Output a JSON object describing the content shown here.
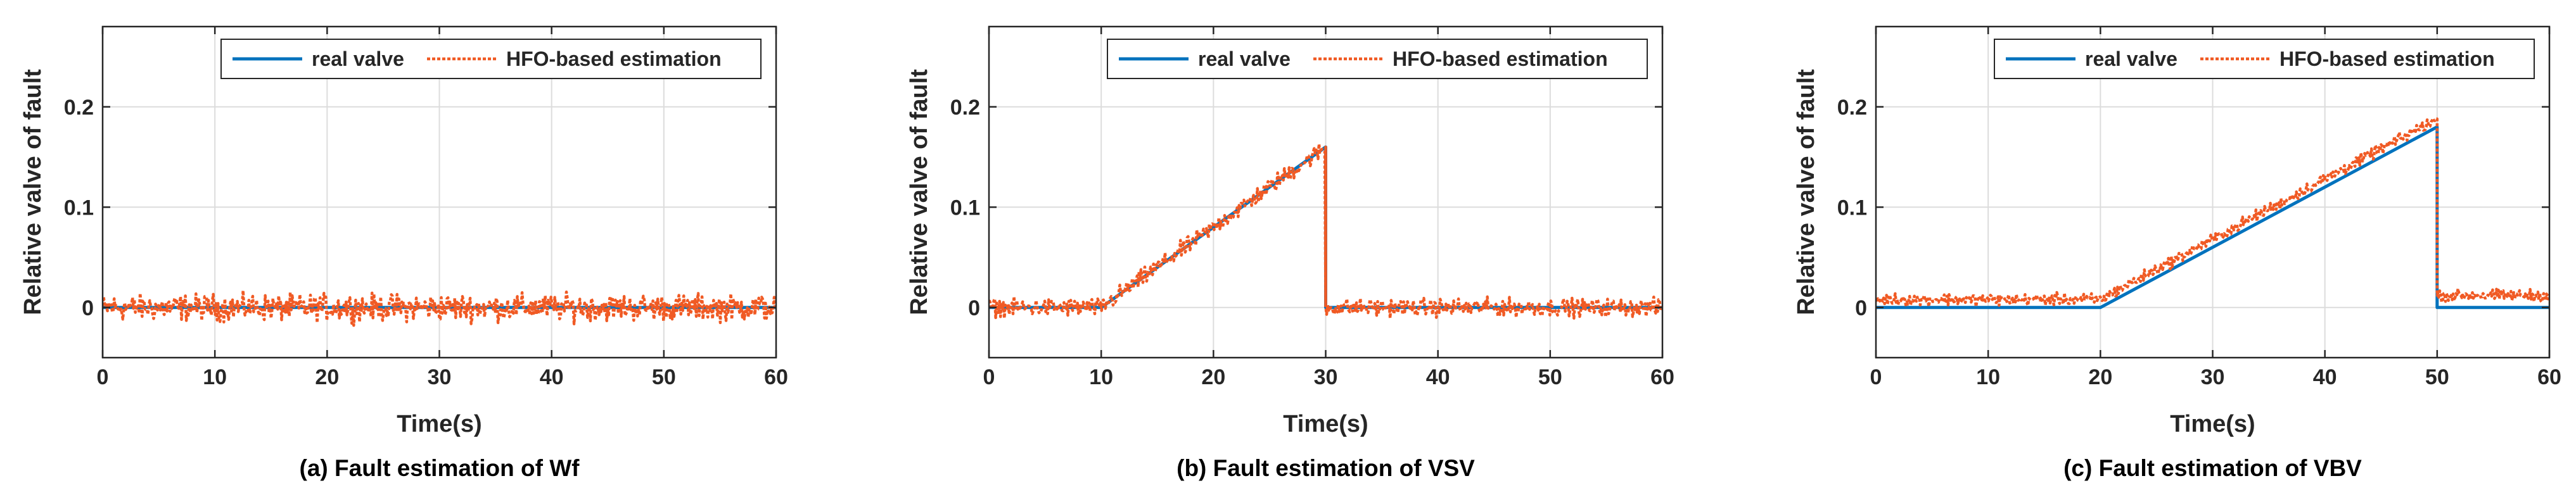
{
  "colors": {
    "real": "#0072BD",
    "estimation": "#F05A24"
  },
  "chart_data": [
    {
      "type": "line",
      "title": "(a) Fault estimation of Wf",
      "xlabel": "Time(s)",
      "ylabel": "Relative valve of fault",
      "xlim": [
        0,
        60
      ],
      "ylim": [
        -0.05,
        0.28
      ],
      "xticks": [
        0,
        10,
        20,
        30,
        40,
        50,
        60
      ],
      "yticks": [
        0,
        0.1,
        0.2
      ],
      "ytick_labels": [
        "0",
        "0.1",
        "0.2"
      ],
      "grid": true,
      "legend_position": "top-right",
      "series": [
        {
          "name": "real valve",
          "style": "solid",
          "x": [
            0,
            60
          ],
          "y": [
            0,
            0
          ]
        },
        {
          "name": "HFO-based estimation",
          "style": "dotted",
          "x": [
            0,
            60
          ],
          "y": [
            0,
            0
          ],
          "noise": 0.009
        }
      ]
    },
    {
      "type": "line",
      "title": "(b) Fault estimation of VSV",
      "xlabel": "Time(s)",
      "ylabel": "Relative valve of fault",
      "xlim": [
        0,
        60
      ],
      "ylim": [
        -0.05,
        0.28
      ],
      "xticks": [
        0,
        10,
        20,
        30,
        40,
        50,
        60
      ],
      "yticks": [
        0,
        0.1,
        0.2
      ],
      "ytick_labels": [
        "0",
        "0.1",
        "0.2"
      ],
      "grid": true,
      "legend_position": "top-right",
      "series": [
        {
          "name": "real valve",
          "style": "solid",
          "x": [
            0,
            10,
            30,
            30,
            60
          ],
          "y": [
            0,
            0,
            0.16,
            0,
            0
          ]
        },
        {
          "name": "HFO-based estimation",
          "style": "dotted",
          "x": [
            0,
            10,
            30,
            30,
            60
          ],
          "y": [
            0,
            0,
            0.16,
            0,
            0
          ],
          "noise": 0.006
        }
      ]
    },
    {
      "type": "line",
      "title": "(c) Fault estimation of VBV",
      "xlabel": "Time(s)",
      "ylabel": "Relative valve of fault",
      "xlim": [
        0,
        60
      ],
      "ylim": [
        -0.05,
        0.28
      ],
      "xticks": [
        0,
        10,
        20,
        30,
        40,
        50,
        60
      ],
      "yticks": [
        0,
        0.1,
        0.2
      ],
      "ytick_labels": [
        "0",
        "0.1",
        "0.2"
      ],
      "grid": true,
      "legend_position": "top-right",
      "series": [
        {
          "name": "real valve",
          "style": "solid",
          "x": [
            0,
            20,
            50,
            50,
            60
          ],
          "y": [
            0,
            0,
            0.18,
            0,
            0
          ]
        },
        {
          "name": "HFO-based estimation",
          "style": "dotted",
          "x": [
            0,
            20,
            50,
            50,
            60
          ],
          "y": [
            0.008,
            0.008,
            0.188,
            0.012,
            0.012
          ],
          "noise": 0.004
        }
      ]
    }
  ]
}
